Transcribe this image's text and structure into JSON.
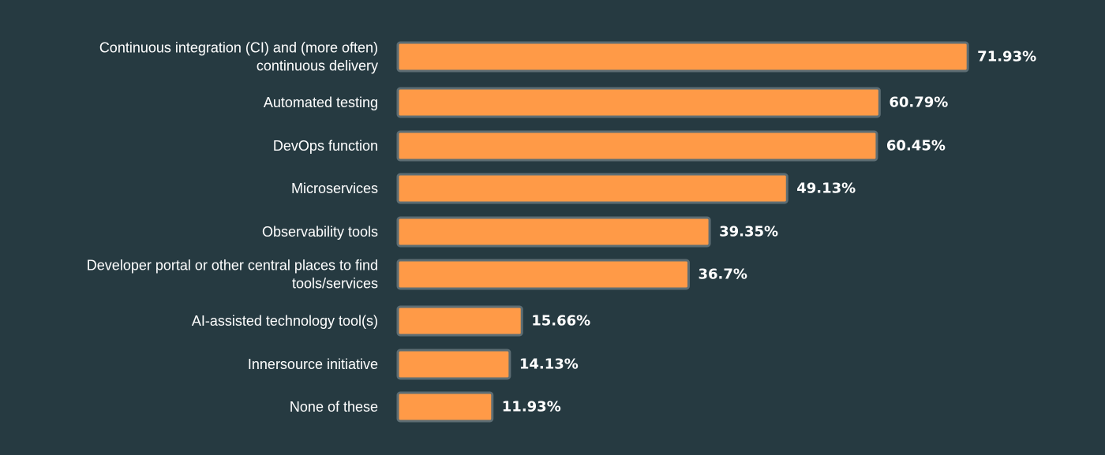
{
  "colors": {
    "background": "#263a41",
    "bar_fill": "#ff9a47",
    "bar_outline": "#5d6d73",
    "text": "#ffffff"
  },
  "chart_data": {
    "type": "bar",
    "orientation": "horizontal",
    "categories": [
      "Continuous integration (CI) and (more often) continuous delivery",
      "Automated testing",
      "DevOps function",
      "Microservices",
      "Observability tools",
      "Developer portal or other central places to find tools/services",
      "AI-assisted technology tool(s)",
      "Innersource initiative",
      "None of these"
    ],
    "values": [
      71.93,
      60.79,
      60.45,
      49.13,
      39.35,
      36.7,
      15.66,
      14.13,
      11.93
    ],
    "value_labels": [
      "71.93%",
      "60.79%",
      "60.45%",
      "49.13%",
      "39.35%",
      "36.7%",
      "15.66%",
      "14.13%",
      "11.93%"
    ],
    "category_label_lines": [
      [
        "Continuous integration (CI) and (more often)",
        "continuous delivery"
      ],
      [
        "Automated testing"
      ],
      [
        "DevOps function"
      ],
      [
        "Microservices"
      ],
      [
        "Observability tools"
      ],
      [
        "Developer portal or other central places to find",
        "tools/services"
      ],
      [
        "AI-assisted technology tool(s)"
      ],
      [
        "Innersource initiative"
      ],
      [
        "None of these"
      ]
    ],
    "unit": "%",
    "grid": false,
    "legend": "none",
    "title": "",
    "xlabel": "",
    "ylabel": ""
  }
}
